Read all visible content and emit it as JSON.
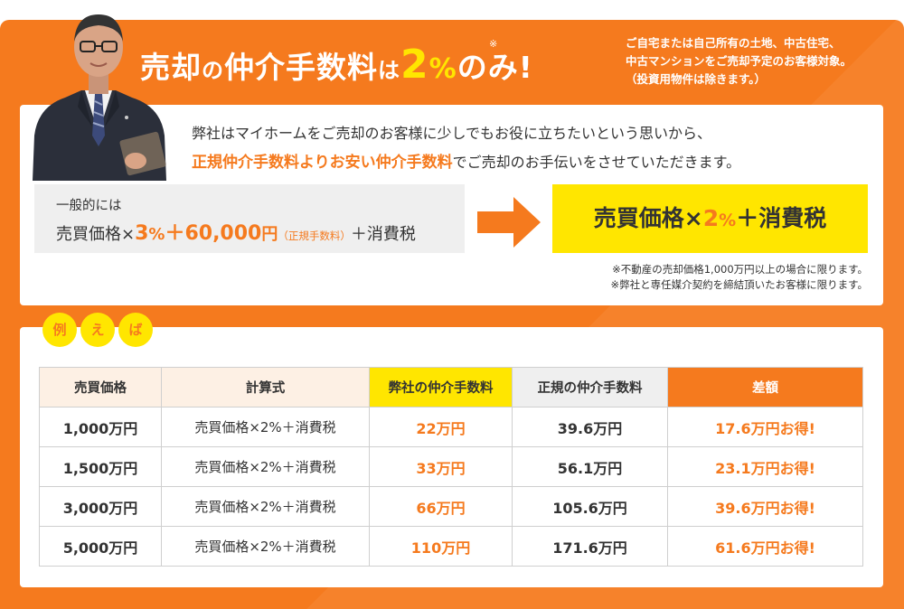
{
  "hero": {
    "title_part1": "売却",
    "title_part2": "の",
    "title_part3": "仲介手数料",
    "title_part4": "は",
    "title_percent": "2",
    "title_percent_unit": "%",
    "title_part5": "のみ!",
    "note_mark": "※",
    "note_lines": [
      "ご自宅または自己所有の土地、中古住宅、",
      "中古マンションをご売却予定のお客様対象。",
      "（投資用物件は除きます。）"
    ]
  },
  "intro": {
    "line1": "弊社はマイホームをご売却のお客様に少しでもお役に立ちたいという思いから、",
    "line2_highlight": "正規仲介手数料よりお安い仲介手数料",
    "line2_rest": "でご売却のお手伝いをさせていただきます。"
  },
  "general": {
    "label": "一般的には",
    "formula_a": "売買価格×",
    "rate": "3",
    "rate_unit": "%",
    "plus_fee": "＋60,000",
    "fee_unit": "円",
    "fee_note": "（正規手数料）",
    "tax": "＋消費税"
  },
  "ours": {
    "formula_a": "売買価格×",
    "rate": "2",
    "rate_unit": "%",
    "tax": "＋消費税"
  },
  "footnotes": [
    "※不動産の売却価格1,000万円以上の場合に限ります。",
    "※弊社と専任媒介契約を締結頂いたお客様に限ります。"
  ],
  "example_label": [
    "例",
    "え",
    "ば"
  ],
  "table": {
    "headers": [
      "売買価格",
      "計算式",
      "弊社の仲介手数料",
      "正規の仲介手数料",
      "差額"
    ],
    "rows": [
      {
        "price": "1,000万円",
        "formula": "売買価格×2%＋消費税",
        "ours": "22万円",
        "regular": "39.6万円",
        "diff": "17.6万円お得!"
      },
      {
        "price": "1,500万円",
        "formula": "売買価格×2%＋消費税",
        "ours": "33万円",
        "regular": "56.1万円",
        "diff": "23.1万円お得!"
      },
      {
        "price": "3,000万円",
        "formula": "売買価格×2%＋消費税",
        "ours": "66万円",
        "regular": "105.6万円",
        "diff": "39.6万円お得!"
      },
      {
        "price": "5,000万円",
        "formula": "売買価格×2%＋消費税",
        "ours": "110万円",
        "regular": "171.6万円",
        "diff": "61.6万円お得!"
      }
    ]
  },
  "colors": {
    "accent_orange": "#f57a1e",
    "highlight_yellow": "#ffe600"
  }
}
